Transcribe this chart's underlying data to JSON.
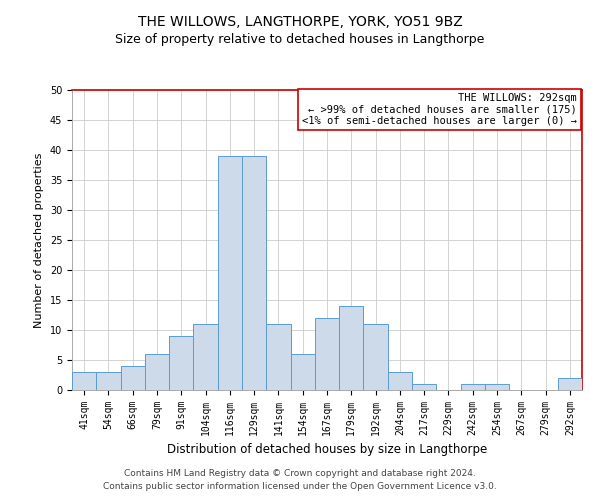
{
  "title": "THE WILLOWS, LANGTHORPE, YORK, YO51 9BZ",
  "subtitle": "Size of property relative to detached houses in Langthorpe",
  "xlabel": "Distribution of detached houses by size in Langthorpe",
  "ylabel": "Number of detached properties",
  "footer_line1": "Contains HM Land Registry data © Crown copyright and database right 2024.",
  "footer_line2": "Contains public sector information licensed under the Open Government Licence v3.0.",
  "categories": [
    "41sqm",
    "54sqm",
    "66sqm",
    "79sqm",
    "91sqm",
    "104sqm",
    "116sqm",
    "129sqm",
    "141sqm",
    "154sqm",
    "167sqm",
    "179sqm",
    "192sqm",
    "204sqm",
    "217sqm",
    "229sqm",
    "242sqm",
    "254sqm",
    "267sqm",
    "279sqm",
    "292sqm"
  ],
  "values": [
    3,
    3,
    4,
    6,
    9,
    11,
    39,
    39,
    11,
    6,
    12,
    14,
    11,
    3,
    1,
    0,
    1,
    1,
    0,
    0,
    2
  ],
  "bar_color": "#ccdaea",
  "bar_edge_color": "#5b9bd5",
  "annotation_line1": "THE WILLOWS: 292sqm",
  "annotation_line2": "← >99% of detached houses are smaller (175)",
  "annotation_line3": "<1% of semi-detached houses are larger (0) →",
  "annotation_box_facecolor": "#ffffff",
  "annotation_box_edgecolor": "#cc0000",
  "ylim": [
    0,
    50
  ],
  "yticks": [
    0,
    5,
    10,
    15,
    20,
    25,
    30,
    35,
    40,
    45,
    50
  ],
  "grid_color": "#cccccc",
  "bg_color": "#ffffff",
  "title_fontsize": 10,
  "subtitle_fontsize": 9,
  "xlabel_fontsize": 8.5,
  "ylabel_fontsize": 8,
  "tick_fontsize": 7,
  "annotation_fontsize": 7.5,
  "footer_fontsize": 6.5
}
